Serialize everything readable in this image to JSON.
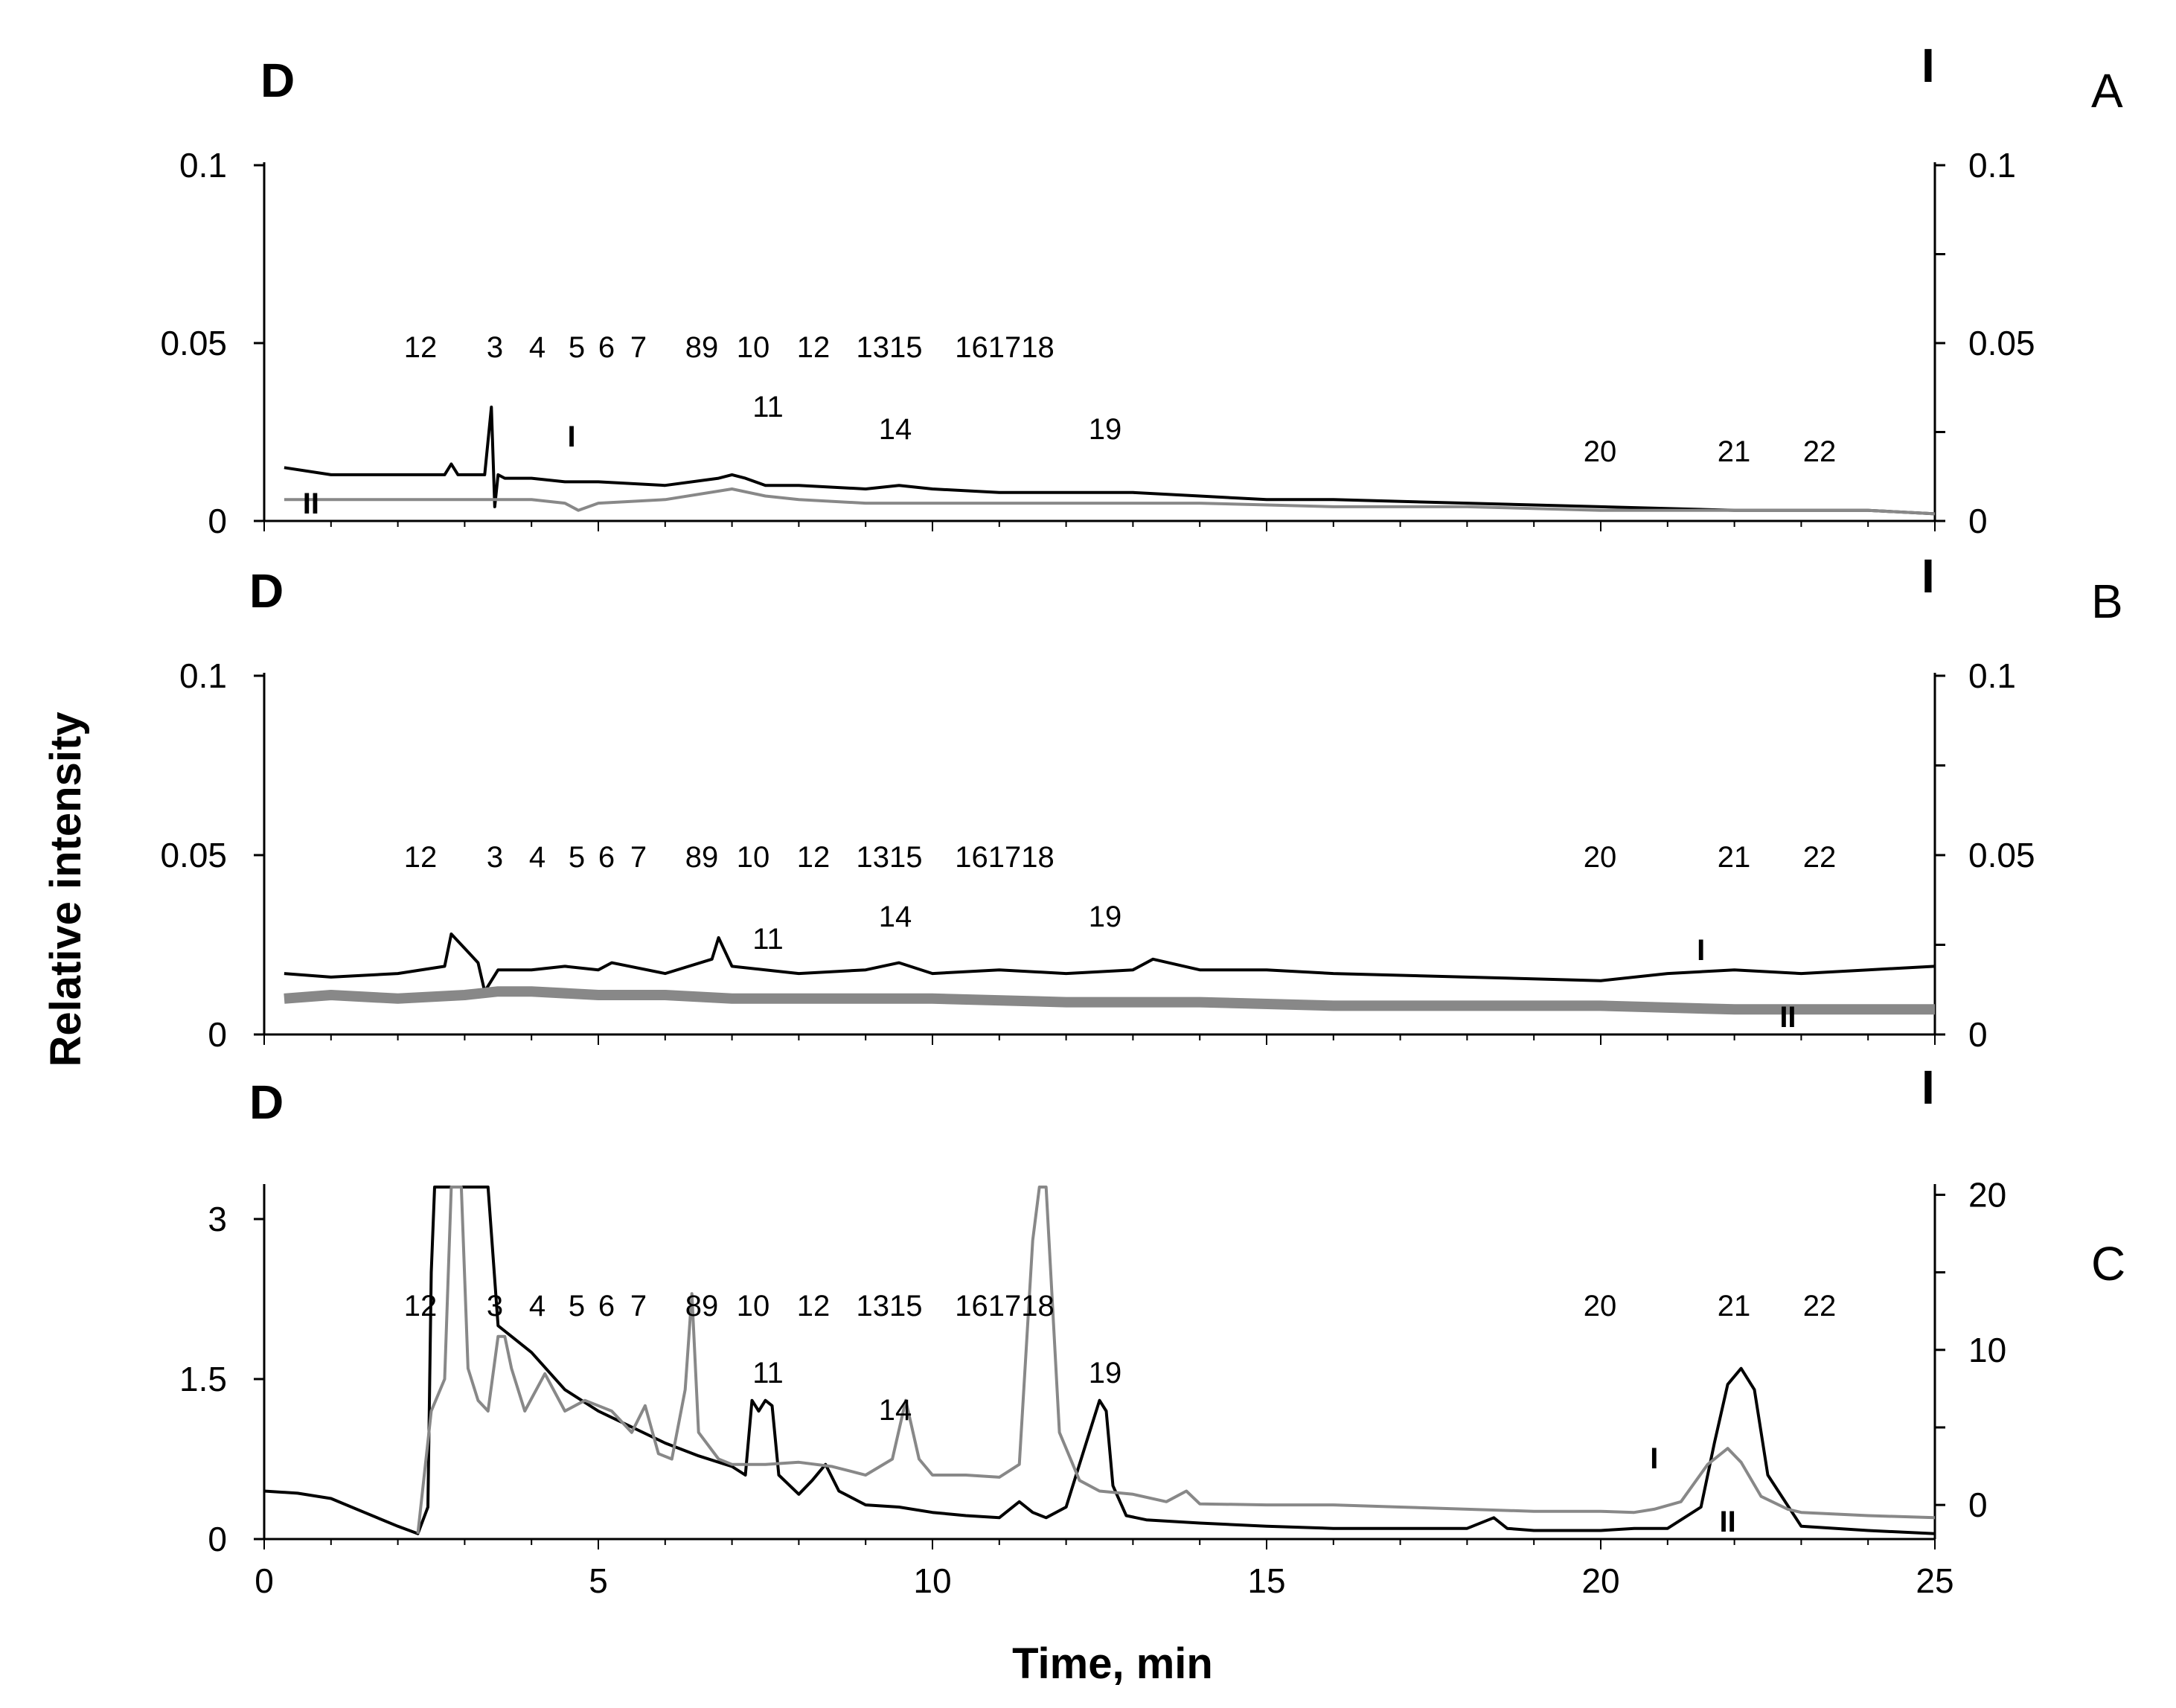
{
  "chart_data": {
    "type": "line",
    "xlabel": "Time, min",
    "ylabel": "Relative intensity",
    "xlim": [
      0,
      25
    ],
    "xticks": [
      "0",
      "5",
      "10",
      "15",
      "20",
      "25"
    ],
    "peak_labels": [
      "12",
      "3",
      "4",
      "5",
      "6",
      "7",
      "89",
      "10",
      "11",
      "12",
      "1315",
      "14",
      "161718",
      "19",
      "20",
      "21",
      "22"
    ],
    "panels": [
      {
        "id": "A",
        "left_axis_label": "D",
        "right_axis_label": "I",
        "left_yticks": [
          "0",
          "0.05",
          "0.1"
        ],
        "right_yticks": [
          "0",
          "0.05",
          "0.1"
        ],
        "left_ylim": [
          0,
          0.1
        ],
        "right_ylim": [
          0,
          0.1
        ],
        "markers": [
          {
            "text": "I",
            "x": 4.6
          },
          {
            "text": "II",
            "x": 0.7
          }
        ],
        "series": [
          {
            "color": "#000000",
            "x": [
              0.3,
              1,
              2,
              2.7,
              2.8,
              2.9,
              3,
              3.3,
              3.4,
              3.45,
              3.5,
              3.6,
              4,
              4.5,
              5,
              6,
              6.8,
              7.0,
              7.2,
              7.5,
              8,
              9,
              9.5,
              10,
              11,
              12,
              13,
              14,
              15,
              16,
              18,
              20,
              22,
              23,
              24,
              25
            ],
            "y": [
              0.015,
              0.013,
              0.013,
              0.013,
              0.016,
              0.013,
              0.013,
              0.013,
              0.032,
              0.004,
              0.013,
              0.012,
              0.012,
              0.011,
              0.011,
              0.01,
              0.012,
              0.013,
              0.012,
              0.01,
              0.01,
              0.009,
              0.01,
              0.009,
              0.008,
              0.008,
              0.008,
              0.007,
              0.006,
              0.006,
              0.005,
              0.004,
              0.003,
              0.003,
              0.003,
              0.002
            ]
          },
          {
            "color": "#888888",
            "x": [
              0.3,
              1,
              2,
              3,
              3.4,
              4,
              4.5,
              4.7,
              5,
              6,
              7.0,
              7.5,
              8,
              9,
              10,
              12,
              14,
              16,
              18,
              20,
              22,
              24,
              25
            ],
            "y": [
              0.006,
              0.006,
              0.006,
              0.006,
              0.006,
              0.006,
              0.005,
              0.003,
              0.005,
              0.006,
              0.009,
              0.007,
              0.006,
              0.005,
              0.005,
              0.005,
              0.005,
              0.004,
              0.004,
              0.003,
              0.003,
              0.003,
              0.002
            ]
          }
        ]
      },
      {
        "id": "B",
        "left_axis_label": "D",
        "right_axis_label": "I",
        "left_yticks": [
          "0",
          "0.05",
          "0.1"
        ],
        "right_yticks": [
          "0",
          "0.05",
          "0.1"
        ],
        "left_ylim": [
          0,
          0.1
        ],
        "right_ylim": [
          0,
          0.1
        ],
        "markers": [
          {
            "text": "I",
            "x": 21.5
          },
          {
            "text": "II",
            "x": 22.8
          }
        ],
        "series": [
          {
            "color": "#000000",
            "x": [
              0.3,
              1,
              2,
              2.7,
              2.8,
              3,
              3.2,
              3.3,
              3.5,
              4,
              4.5,
              5,
              5.2,
              6,
              6.7,
              6.8,
              7.0,
              7.5,
              8,
              9,
              9.5,
              10,
              11,
              12,
              13,
              13.3,
              14,
              15,
              16,
              18,
              20,
              21,
              22,
              23,
              24,
              25
            ],
            "y": [
              0.017,
              0.016,
              0.017,
              0.019,
              0.028,
              0.024,
              0.02,
              0.012,
              0.018,
              0.018,
              0.019,
              0.018,
              0.02,
              0.017,
              0.021,
              0.027,
              0.019,
              0.018,
              0.017,
              0.018,
              0.02,
              0.017,
              0.018,
              0.017,
              0.018,
              0.021,
              0.018,
              0.018,
              0.017,
              0.016,
              0.015,
              0.017,
              0.018,
              0.017,
              0.018,
              0.019
            ]
          },
          {
            "color": "#888888",
            "x": [
              0.3,
              1,
              2,
              3,
              3.5,
              4,
              5,
              6,
              7,
              8,
              10,
              12,
              14,
              16,
              18,
              20,
              22,
              23,
              24,
              25
            ],
            "y": [
              0.01,
              0.011,
              0.01,
              0.011,
              0.012,
              0.012,
              0.011,
              0.011,
              0.01,
              0.01,
              0.01,
              0.009,
              0.009,
              0.008,
              0.008,
              0.008,
              0.007,
              0.007,
              0.007,
              0.007
            ]
          }
        ]
      },
      {
        "id": "C",
        "left_axis_label": "D",
        "right_axis_label": "I",
        "left_yticks": [
          "0",
          "1.5",
          "3"
        ],
        "right_yticks": [
          "0",
          "10",
          "20"
        ],
        "left_ylim": [
          0,
          3.3
        ],
        "right_ylim": [
          -2.2,
          20.5
        ],
        "markers": [
          {
            "text": "I",
            "x": 20.8
          },
          {
            "text": "II",
            "x": 21.9
          }
        ],
        "series": [
          {
            "color": "#000000",
            "x": [
              0,
              0.5,
              1,
              1.5,
              2,
              2.3,
              2.45,
              2.5,
              2.55,
              2.7,
              3.0,
              3.2,
              3.3,
              3.35,
              3.5,
              3.6,
              3.7,
              4,
              4.5,
              5,
              5.5,
              6,
              6.5,
              7,
              7.2,
              7.3,
              7.4,
              7.5,
              7.6,
              7.7,
              8,
              8.2,
              8.4,
              8.6,
              9,
              9.5,
              10,
              10.5,
              11,
              11.3,
              11.5,
              11.7,
              12,
              12.3,
              12.5,
              12.6,
              12.7,
              12.9,
              13.2,
              14,
              15,
              16,
              17,
              18,
              18.4,
              18.6,
              19,
              20,
              20.5,
              21,
              21.5,
              21.7,
              21.9,
              22.1,
              22.3,
              22.5,
              23,
              24,
              25
            ],
            "y": [
              0.45,
              0.43,
              0.38,
              0.25,
              0.12,
              0.05,
              0.3,
              2.5,
              3.3,
              3.3,
              3.3,
              3.3,
              3.3,
              3.3,
              2.0,
              1.95,
              1.9,
              1.75,
              1.4,
              1.2,
              1.05,
              0.9,
              0.78,
              0.68,
              0.6,
              1.3,
              1.2,
              1.3,
              1.25,
              0.6,
              0.42,
              0.55,
              0.7,
              0.45,
              0.32,
              0.3,
              0.25,
              0.22,
              0.2,
              0.35,
              0.25,
              0.2,
              0.3,
              0.9,
              1.3,
              1.2,
              0.5,
              0.22,
              0.18,
              0.15,
              0.12,
              0.1,
              0.1,
              0.1,
              0.2,
              0.1,
              0.08,
              0.08,
              0.1,
              0.1,
              0.3,
              0.9,
              1.45,
              1.6,
              1.4,
              0.6,
              0.12,
              0.08,
              0.05
            ]
          },
          {
            "color": "#888888",
            "x": [
              2.3,
              2.5,
              2.7,
              2.8,
              2.95,
              3.05,
              3.2,
              3.35,
              3.5,
              3.6,
              3.7,
              3.9,
              4.2,
              4.5,
              4.8,
              5,
              5.2,
              5.5,
              5.7,
              5.9,
              6.1,
              6.3,
              6.4,
              6.5,
              6.8,
              7,
              7.5,
              8,
              8.5,
              9,
              9.4,
              9.6,
              9.8,
              10,
              10.5,
              11,
              11.3,
              11.5,
              11.6,
              11.7,
              11.9,
              12.2,
              12.5,
              13,
              13.5,
              13.8,
              14,
              15,
              16,
              17,
              18,
              19,
              20,
              20.5,
              20.8,
              21.2,
              21.6,
              21.9,
              22.1,
              22.4,
              22.8,
              23,
              24,
              25
            ],
            "y": [
              0.05,
              1.2,
              1.5,
              3.3,
              3.3,
              1.6,
              1.3,
              1.2,
              1.9,
              1.9,
              1.6,
              1.2,
              1.55,
              1.2,
              1.3,
              1.25,
              1.2,
              1.0,
              1.25,
              0.8,
              0.75,
              1.4,
              2.3,
              1.0,
              0.75,
              0.7,
              0.7,
              0.72,
              0.68,
              0.6,
              0.75,
              1.3,
              0.75,
              0.6,
              0.6,
              0.58,
              0.7,
              2.8,
              3.3,
              3.3,
              1.0,
              0.55,
              0.45,
              0.42,
              0.35,
              0.45,
              0.33,
              0.32,
              0.32,
              0.3,
              0.28,
              0.26,
              0.26,
              0.25,
              0.28,
              0.35,
              0.7,
              0.85,
              0.72,
              0.4,
              0.28,
              0.25,
              0.22,
              0.2
            ]
          }
        ]
      }
    ]
  }
}
